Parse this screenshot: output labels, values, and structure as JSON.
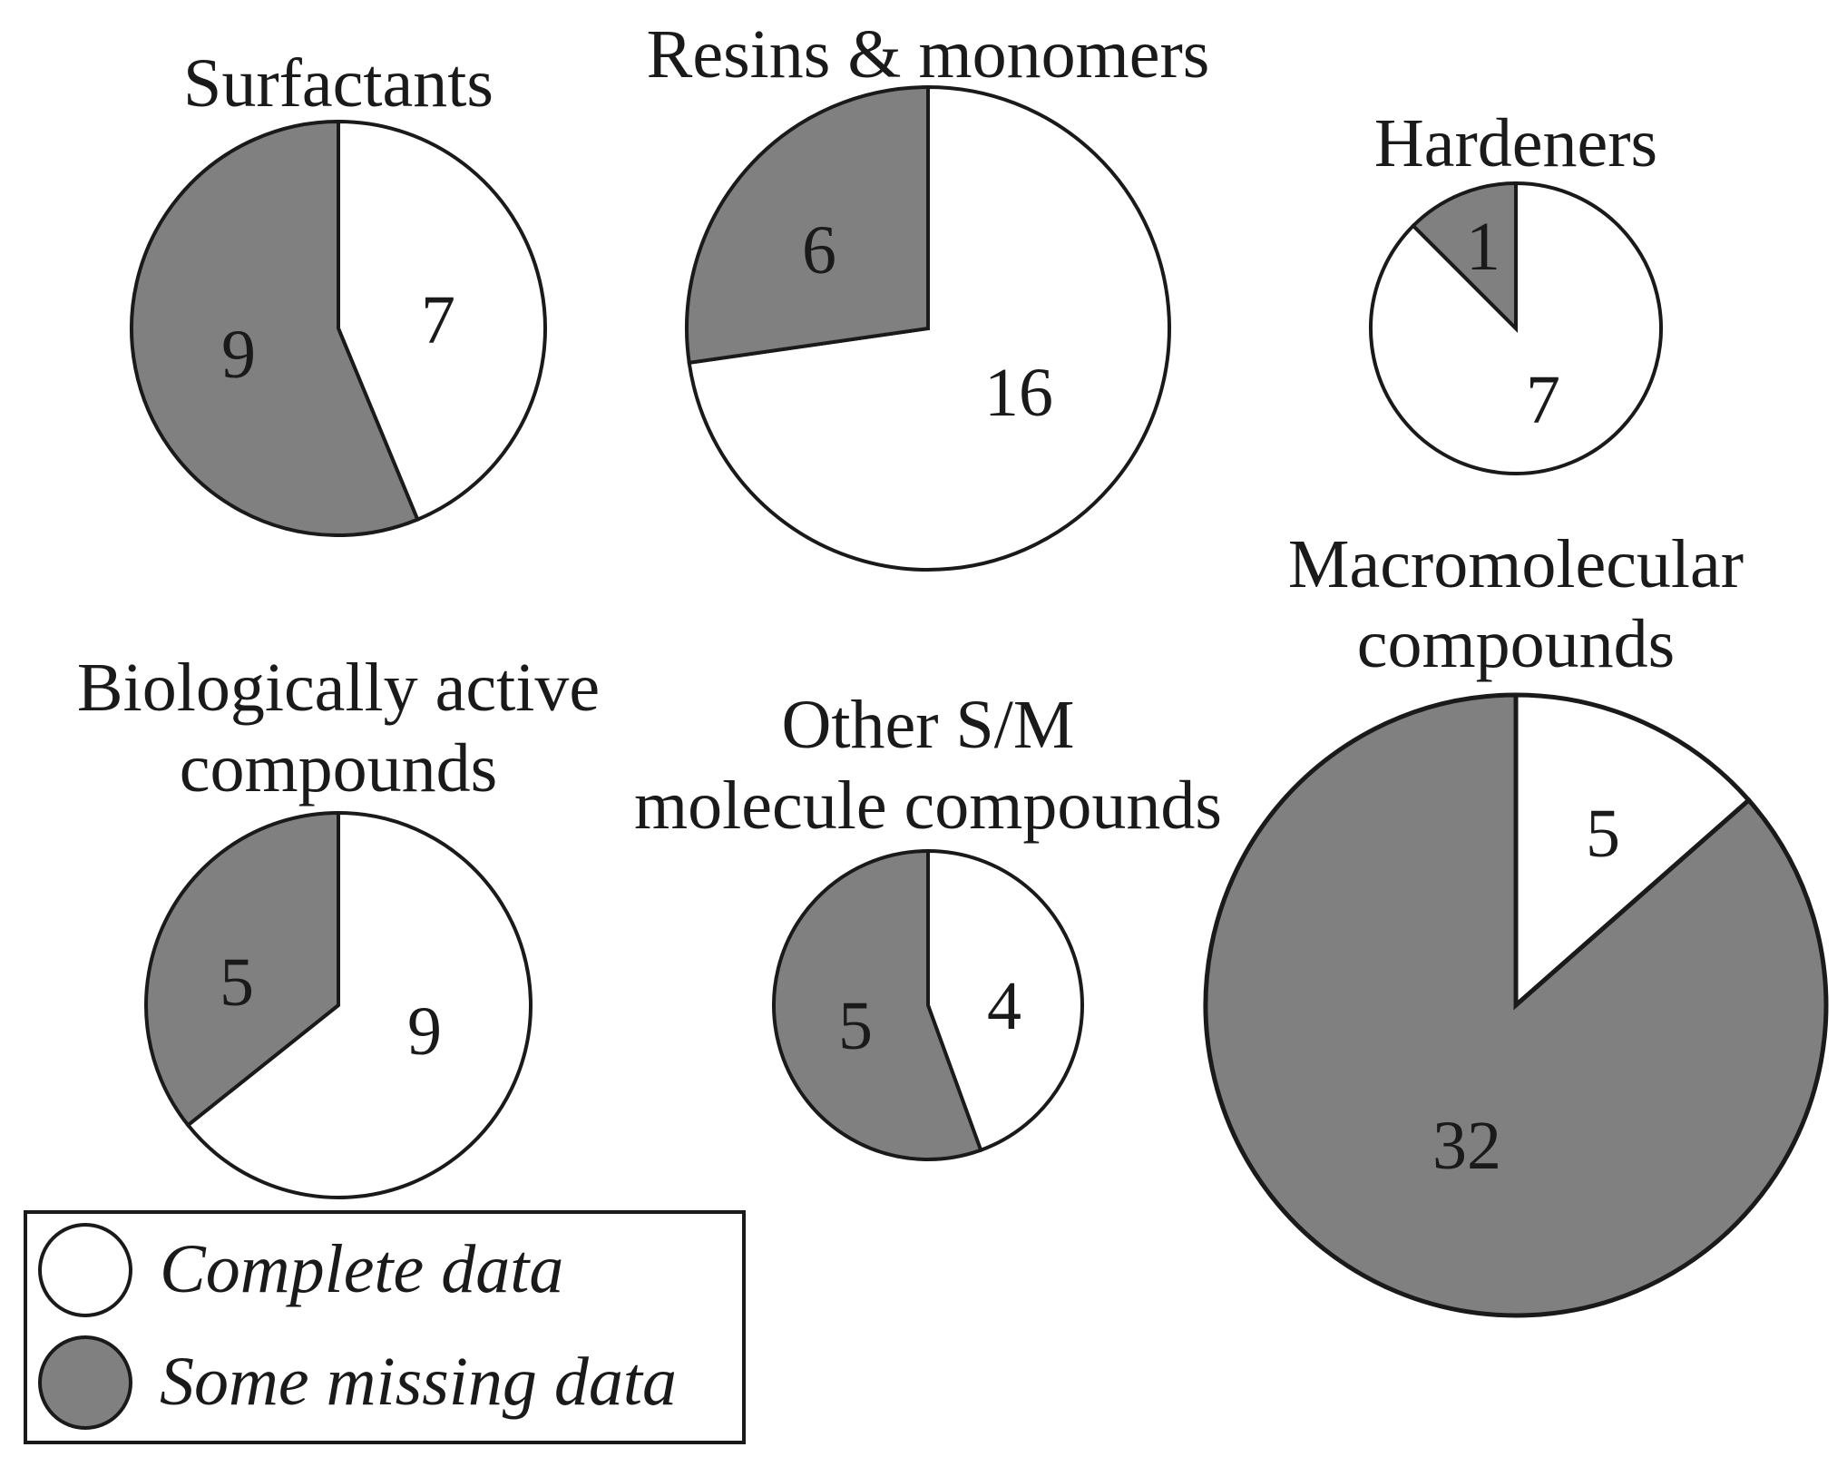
{
  "chart_data": {
    "type": "pie",
    "colors": {
      "complete": "#ffffff",
      "missing": "#808080",
      "outline": "#1a1a1a"
    },
    "legend": {
      "placement": "bottom-left",
      "items": [
        {
          "key": "complete",
          "label": "Complete data"
        },
        {
          "key": "missing",
          "label": "Some missing data"
        }
      ]
    },
    "charts": [
      {
        "title_lines": [
          "Surfactants"
        ],
        "complete": 7,
        "missing": 9
      },
      {
        "title_lines": [
          "Resins & monomers"
        ],
        "complete": 16,
        "missing": 6
      },
      {
        "title_lines": [
          "Hardeners"
        ],
        "complete": 7,
        "missing": 1
      },
      {
        "title_lines": [
          "Biologically active",
          "compounds"
        ],
        "complete": 9,
        "missing": 5
      },
      {
        "title_lines": [
          "Other S/M",
          "molecule compounds"
        ],
        "complete": 4,
        "missing": 5
      },
      {
        "title_lines": [
          "Macromolecular",
          "compounds"
        ],
        "complete": 5,
        "missing": 32
      }
    ]
  }
}
